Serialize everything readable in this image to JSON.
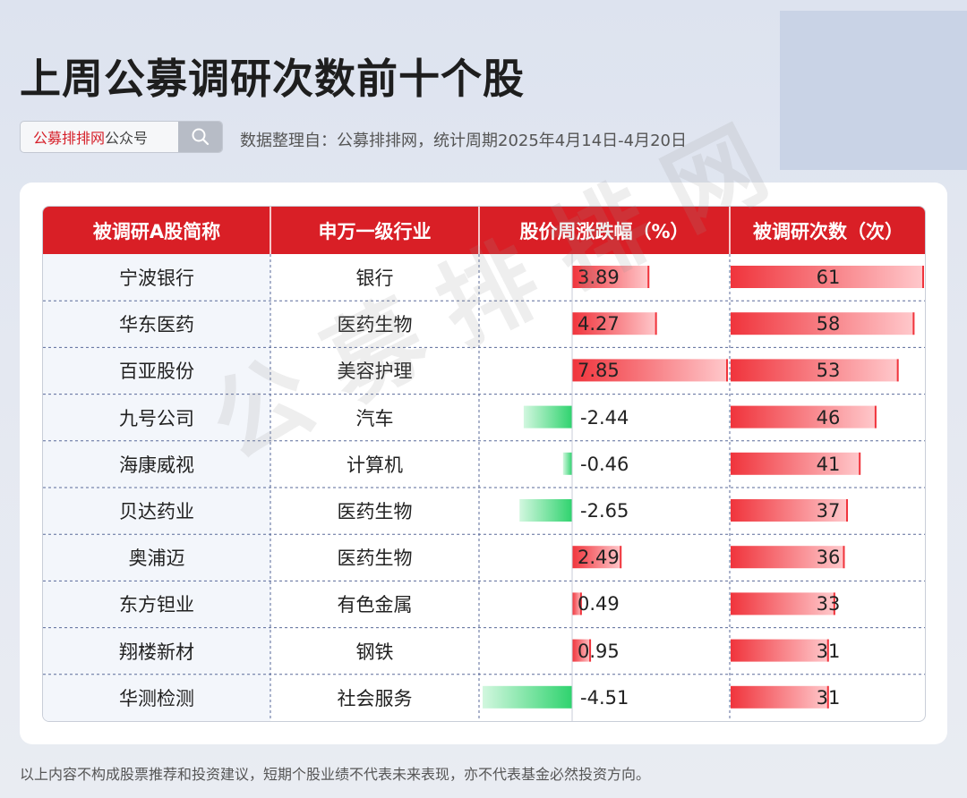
{
  "title": "上周公募调研次数前十个股",
  "search": {
    "brand_red": "公募排排网",
    "brand_gray": "公众号",
    "icon": "search-icon"
  },
  "source": "数据整理自：公募排排网，统计周期2025年4月14日-4月20日",
  "watermark": "公募排排网",
  "footer": "以上内容不构成股票推荐和投资建议，短期个股业绩不代表未来表现，亦不代表基金必然投资方向。",
  "colors": {
    "header": "#d91f26",
    "positive_bar": "#f0343c",
    "negative_bar": "#2fd36e",
    "count_bar": "#f0343c"
  },
  "chart_data": {
    "type": "table",
    "columns": [
      "被调研A股简称",
      "申万一级行业",
      "股价周涨跌幅（%）",
      "被调研次数（次）"
    ],
    "rows": [
      {
        "name": "宁波银行",
        "industry": "银行",
        "change": 3.89,
        "count": 61
      },
      {
        "name": "华东医药",
        "industry": "医药生物",
        "change": 4.27,
        "count": 58
      },
      {
        "name": "百亚股份",
        "industry": "美容护理",
        "change": 7.85,
        "count": 53
      },
      {
        "name": "九号公司",
        "industry": "汽车",
        "change": -2.44,
        "count": 46
      },
      {
        "name": "海康威视",
        "industry": "计算机",
        "change": -0.46,
        "count": 41
      },
      {
        "name": "贝达药业",
        "industry": "医药生物",
        "change": -2.65,
        "count": 37
      },
      {
        "name": "奥浦迈",
        "industry": "医药生物",
        "change": 2.49,
        "count": 36
      },
      {
        "name": "东方钽业",
        "industry": "有色金属",
        "change": 0.49,
        "count": 33
      },
      {
        "name": "翔楼新材",
        "industry": "钢铁",
        "change": 0.95,
        "count": 31
      },
      {
        "name": "华测检测",
        "industry": "社会服务",
        "change": -4.51,
        "count": 31
      }
    ]
  }
}
